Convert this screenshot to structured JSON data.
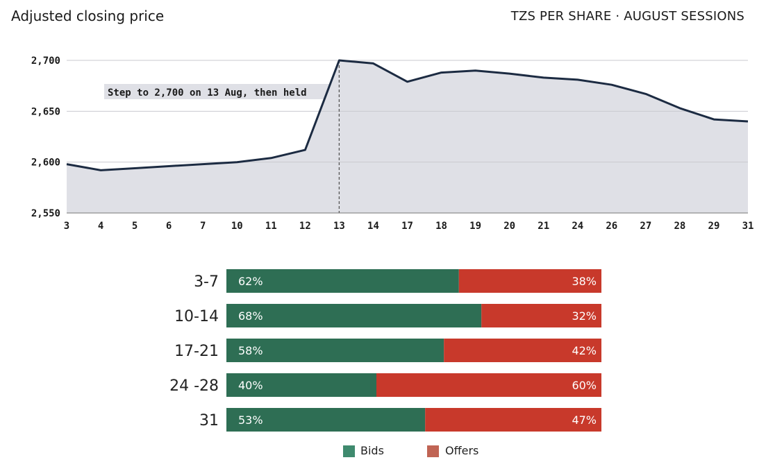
{
  "header": {
    "title": "Adjusted closing price",
    "subtitle": "TZS PER SHARE · AUGUST SESSIONS"
  },
  "colors": {
    "line": "#1c2b42",
    "area": "#dfe0e6",
    "bids": "#2e6e54",
    "offers": "#c8392b",
    "bids_legend": "#3f8a6e",
    "offers_legend": "#c06454"
  },
  "chart_data": [
    {
      "type": "area",
      "title": "Adjusted closing price",
      "subtitle": "TZS PER SHARE · AUGUST SESSIONS",
      "categories": [
        "3",
        "4",
        "5",
        "6",
        "7",
        "10",
        "11",
        "12",
        "13",
        "14",
        "17",
        "18",
        "19",
        "20",
        "21",
        "24",
        "26",
        "27",
        "28",
        "29",
        "31"
      ],
      "values": [
        2598,
        2592,
        2594,
        2596,
        2598,
        2600,
        2604,
        2612,
        2700,
        2697,
        2679,
        2688,
        2690,
        2687,
        2683,
        2681,
        2676,
        2667,
        2653,
        2642,
        2640
      ],
      "ylim": [
        2550,
        2700
      ],
      "yticks": [
        "2,550",
        "2,600",
        "2,650",
        "2,700"
      ],
      "grid": true,
      "annotation": {
        "x": "13",
        "text": "Step to 2,700 on 13 Aug, then held"
      }
    },
    {
      "type": "bar",
      "orientation": "horizontal-stacked",
      "categories": [
        "3-7",
        "10-14",
        "17-21",
        "24 -28",
        "31"
      ],
      "series": [
        {
          "name": "Bids",
          "values": [
            62,
            68,
            58,
            40,
            53
          ]
        },
        {
          "name": "Offers",
          "values": [
            38,
            32,
            42,
            60,
            47
          ]
        }
      ],
      "value_labels": {
        "bids": [
          "62%",
          "68%",
          "58%",
          "40%",
          "53%"
        ],
        "offers": [
          "38%",
          "32%",
          "42%",
          "60%",
          "47%"
        ]
      },
      "legend": {
        "position": "bottom",
        "items": [
          "Bids",
          "Offers"
        ]
      }
    }
  ]
}
